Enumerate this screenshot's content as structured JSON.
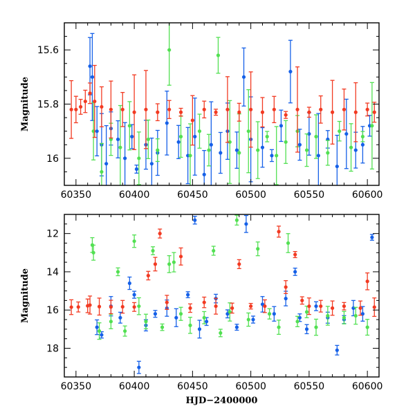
{
  "colors": {
    "blue": "#1560e8",
    "green": "#52e052",
    "red": "#f23a22"
  },
  "chart_data": [
    {
      "type": "scatter",
      "title": "",
      "xlabel": "",
      "ylabel": "Magnitude",
      "xlim": [
        60340,
        60610
      ],
      "ylim": [
        16.1,
        15.5
      ],
      "y_inverted": true,
      "error_bars": true,
      "x_ticks": [
        "60350",
        "60400",
        "60450",
        "60500",
        "60550",
        "60600"
      ],
      "y_ticks": [
        "15.6",
        "15.8",
        "16"
      ],
      "series": [
        {
          "color_key": "blue",
          "points": [
            [
              60362,
              15.66
            ],
            [
              60364,
              15.7
            ],
            [
              60368,
              15.9
            ],
            [
              60372,
              15.95
            ],
            [
              60376,
              16.02
            ],
            [
              60380,
              15.89
            ],
            [
              60386,
              15.93
            ],
            [
              60392,
              16.0
            ],
            [
              60398,
              15.92
            ],
            [
              60402,
              16.04
            ],
            [
              60410,
              15.95
            ],
            [
              60415,
              16.02
            ],
            [
              60420,
              15.98
            ],
            [
              60428,
              15.87
            ],
            [
              60438,
              15.94
            ],
            [
              60446,
              15.99
            ],
            [
              60452,
              15.92
            ],
            [
              60460,
              16.06
            ],
            [
              60466,
              15.95
            ],
            [
              60474,
              15.98
            ],
            [
              60480,
              15.9
            ],
            [
              60488,
              15.97
            ],
            [
              60494,
              15.7
            ],
            [
              60500,
              15.93
            ],
            [
              60510,
              15.96
            ],
            [
              60518,
              15.99
            ],
            [
              60526,
              15.88
            ],
            [
              60534,
              15.68
            ],
            [
              60542,
              15.95
            ],
            [
              60550,
              15.91
            ],
            [
              60558,
              15.99
            ],
            [
              60566,
              15.93
            ],
            [
              60574,
              16.03
            ],
            [
              60582,
              15.91
            ],
            [
              60590,
              15.97
            ],
            [
              60596,
              15.95
            ],
            [
              60602,
              15.88
            ]
          ]
        },
        {
          "color_key": "green",
          "points": [
            [
              60365,
              15.9
            ],
            [
              60372,
              16.05
            ],
            [
              60380,
              15.93
            ],
            [
              60388,
              15.96
            ],
            [
              60396,
              15.88
            ],
            [
              60404,
              16.0
            ],
            [
              60412,
              15.93
            ],
            [
              60420,
              15.97
            ],
            [
              60430,
              15.6
            ],
            [
              60440,
              15.92
            ],
            [
              60448,
              15.99
            ],
            [
              60456,
              15.9
            ],
            [
              60464,
              15.97
            ],
            [
              60472,
              15.62
            ],
            [
              60482,
              15.94
            ],
            [
              60490,
              15.98
            ],
            [
              60498,
              15.9
            ],
            [
              60506,
              15.97
            ],
            [
              60514,
              15.92
            ],
            [
              60522,
              15.99
            ],
            [
              60530,
              15.94
            ],
            [
              60540,
              15.9
            ],
            [
              60548,
              15.97
            ],
            [
              60556,
              15.92
            ],
            [
              60566,
              15.98
            ],
            [
              60576,
              15.9
            ],
            [
              60586,
              15.96
            ],
            [
              60596,
              15.92
            ],
            [
              60604,
              15.88
            ]
          ]
        },
        {
          "color_key": "red",
          "points": [
            [
              60346,
              15.82
            ],
            [
              60350,
              15.82
            ],
            [
              60354,
              15.81
            ],
            [
              60358,
              15.79
            ],
            [
              60362,
              15.76
            ],
            [
              60366,
              15.79
            ],
            [
              60372,
              15.81
            ],
            [
              60380,
              15.82
            ],
            [
              60390,
              15.82
            ],
            [
              60400,
              15.83
            ],
            [
              60410,
              15.82
            ],
            [
              60420,
              15.83
            ],
            [
              60430,
              15.82
            ],
            [
              60440,
              15.83
            ],
            [
              60450,
              15.86
            ],
            [
              60460,
              15.82
            ],
            [
              60470,
              15.83
            ],
            [
              60480,
              15.82
            ],
            [
              60490,
              15.83
            ],
            [
              60500,
              15.82
            ],
            [
              60510,
              15.83
            ],
            [
              60520,
              15.82
            ],
            [
              60530,
              15.84
            ],
            [
              60540,
              15.82
            ],
            [
              60550,
              15.83
            ],
            [
              60560,
              15.82
            ],
            [
              60570,
              15.83
            ],
            [
              60580,
              15.82
            ],
            [
              60590,
              15.83
            ],
            [
              60600,
              15.82
            ],
            [
              60606,
              15.83
            ]
          ]
        }
      ]
    },
    {
      "type": "scatter",
      "title": "",
      "xlabel": "HJD−2400000",
      "ylabel": "Magnitude",
      "xlim": [
        60340,
        60610
      ],
      "ylim": [
        19.5,
        11.0
      ],
      "y_inverted": true,
      "error_bars": true,
      "x_ticks": [
        "60350",
        "60400",
        "60450",
        "60500",
        "60550",
        "60600"
      ],
      "y_ticks": [
        "12",
        "14",
        "16",
        "18"
      ],
      "series": [
        {
          "color_key": "blue",
          "points": [
            [
              60368,
              16.9
            ],
            [
              60372,
              17.3
            ],
            [
              60380,
              15.8
            ],
            [
              60388,
              16.4
            ],
            [
              60396,
              14.6
            ],
            [
              60400,
              15.2
            ],
            [
              60404,
              19.0
            ],
            [
              60410,
              16.8
            ],
            [
              60418,
              16.2
            ],
            [
              60428,
              15.9
            ],
            [
              60436,
              16.4
            ],
            [
              60446,
              15.2
            ],
            [
              60452,
              11.3
            ],
            [
              60456,
              17.0
            ],
            [
              60462,
              16.6
            ],
            [
              60470,
              15.4
            ],
            [
              60480,
              16.2
            ],
            [
              60488,
              16.9
            ],
            [
              60496,
              11.5
            ],
            [
              60502,
              16.5
            ],
            [
              60510,
              15.7
            ],
            [
              60520,
              16.2
            ],
            [
              60530,
              15.4
            ],
            [
              60538,
              14.0
            ],
            [
              60542,
              16.4
            ],
            [
              60548,
              17.0
            ],
            [
              60556,
              15.8
            ],
            [
              60566,
              16.4
            ],
            [
              60574,
              18.1
            ],
            [
              60580,
              16.5
            ],
            [
              60588,
              15.9
            ],
            [
              60596,
              16.2
            ],
            [
              60604,
              12.2
            ]
          ]
        },
        {
          "color_key": "green",
          "points": [
            [
              60364,
              12.6
            ],
            [
              60365,
              13.0
            ],
            [
              60370,
              17.1
            ],
            [
              60380,
              16.6
            ],
            [
              60386,
              14.0
            ],
            [
              60392,
              17.1
            ],
            [
              60400,
              12.4
            ],
            [
              60404,
              15.8
            ],
            [
              60410,
              16.6
            ],
            [
              60416,
              12.9
            ],
            [
              60424,
              16.9
            ],
            [
              60430,
              13.6
            ],
            [
              60434,
              13.5
            ],
            [
              60440,
              16.2
            ],
            [
              60448,
              16.8
            ],
            [
              60460,
              16.4
            ],
            [
              60468,
              12.9
            ],
            [
              60474,
              17.2
            ],
            [
              60482,
              16.1
            ],
            [
              60488,
              11.3
            ],
            [
              60498,
              16.5
            ],
            [
              60506,
              12.8
            ],
            [
              60516,
              16.2
            ],
            [
              60524,
              16.9
            ],
            [
              60532,
              12.5
            ],
            [
              60540,
              16.6
            ],
            [
              60548,
              16.1
            ],
            [
              60556,
              16.9
            ],
            [
              60566,
              16.3
            ],
            [
              60580,
              16.4
            ],
            [
              60590,
              16.3
            ],
            [
              60600,
              16.9
            ]
          ]
        },
        {
          "color_key": "red",
          "points": [
            [
              60346,
              15.85
            ],
            [
              60352,
              15.84
            ],
            [
              60360,
              15.78
            ],
            [
              60362,
              15.74
            ],
            [
              60370,
              15.82
            ],
            [
              60380,
              15.84
            ],
            [
              60390,
              15.83
            ],
            [
              60400,
              15.84
            ],
            [
              60412,
              14.2
            ],
            [
              60418,
              13.6
            ],
            [
              60422,
              12.0
            ],
            [
              60428,
              15.6
            ],
            [
              60440,
              13.2
            ],
            [
              60448,
              15.9
            ],
            [
              60460,
              15.6
            ],
            [
              60470,
              15.8
            ],
            [
              60484,
              15.9
            ],
            [
              60490,
              13.6
            ],
            [
              60500,
              15.8
            ],
            [
              60512,
              15.8
            ],
            [
              60524,
              11.9
            ],
            [
              60530,
              14.8
            ],
            [
              60538,
              13.1
            ],
            [
              60544,
              15.5
            ],
            [
              60550,
              15.8
            ],
            [
              60560,
              15.8
            ],
            [
              60570,
              15.9
            ],
            [
              60580,
              15.8
            ],
            [
              60594,
              15.9
            ],
            [
              60600,
              14.5
            ],
            [
              60606,
              15.85
            ]
          ]
        }
      ]
    }
  ]
}
